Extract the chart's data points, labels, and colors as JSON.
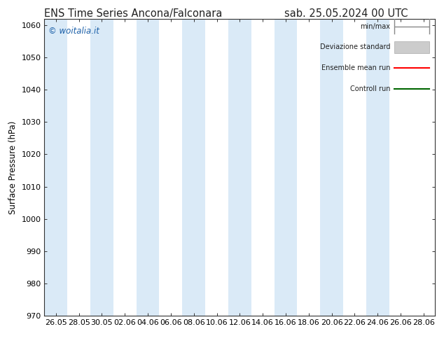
{
  "title_left": "ENS Time Series Ancona/Falconara",
  "title_right": "sab. 25.05.2024 00 UTC",
  "ylabel": "Surface Pressure (hPa)",
  "ylim": [
    970,
    1062
  ],
  "yticks": [
    970,
    980,
    990,
    1000,
    1010,
    1020,
    1030,
    1040,
    1050,
    1060
  ],
  "xtick_labels": [
    "26.05",
    "28.05",
    "30.05",
    "02.06",
    "04.06",
    "06.06",
    "08.06",
    "10.06",
    "12.06",
    "14.06",
    "16.06",
    "18.06",
    "20.06",
    "22.06",
    "24.06",
    "26.06",
    "28.06"
  ],
  "watermark": "© woitalia.it",
  "legend_entries": [
    "min/max",
    "Deviazione standard",
    "Ensemble mean run",
    "Controll run"
  ],
  "band_color": "#daeaf7",
  "background_color": "#ffffff",
  "title_fontsize": 10.5,
  "tick_fontsize": 8,
  "ylabel_fontsize": 8.5,
  "watermark_color": "#1a5fa8",
  "ensemble_mean_color": "#ff0000",
  "control_run_color": "#006600",
  "minmax_color": "#888888",
  "devstd_color": "#cccccc"
}
